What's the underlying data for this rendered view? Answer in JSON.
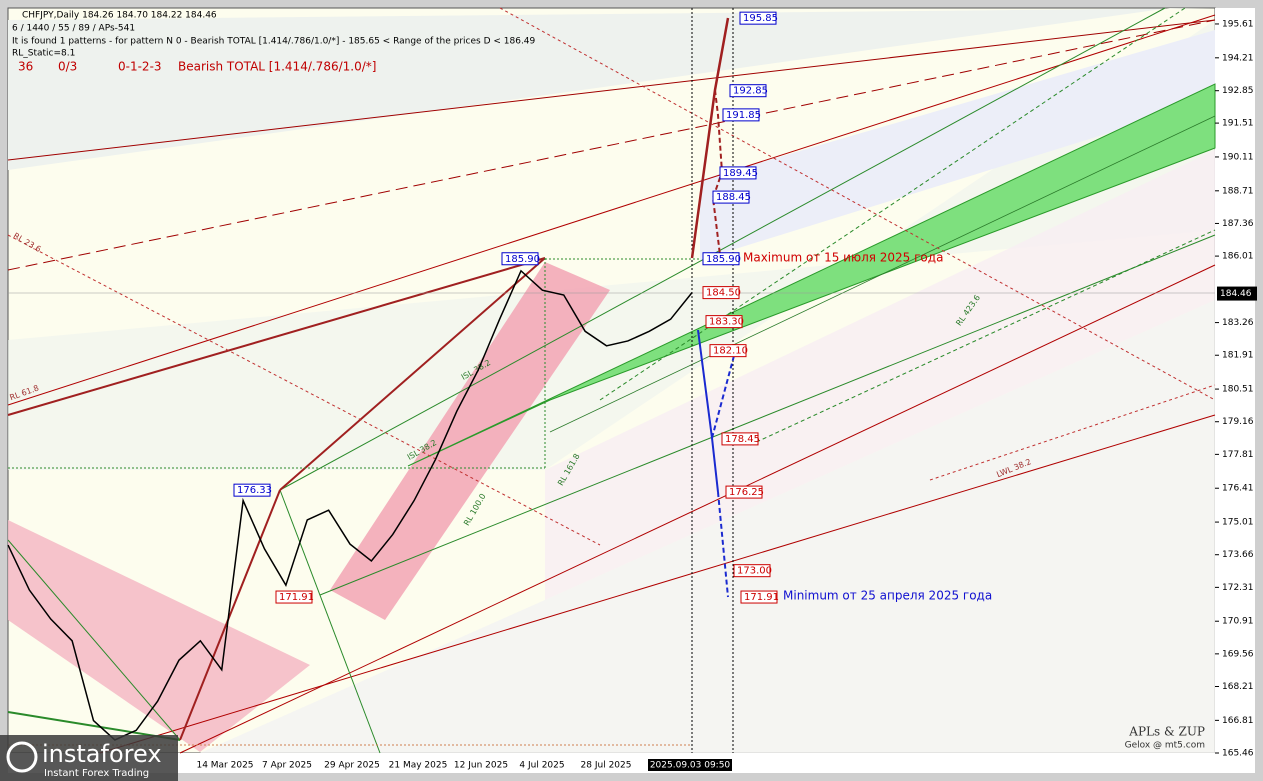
{
  "chart_data": {
    "type": "line",
    "header": [
      "CHFJPY,Daily  184.26 184.70 184.22 184.46",
      "6 / 1440 / 55 / 89 / APs-541",
      "It is found 1 patterns  -  for pattern N 0 - Bearish TOTAL [1.414/.786/1.0/*] - 185.65 < Range of the prices D < 186.49",
      "RL_Static=8.1"
    ],
    "pattern_row": [
      "36",
      "0/3",
      "0-1-2-3",
      "Bearish TOTAL [1.414/.786/1.0/*]"
    ],
    "values": [
      174.06,
      172.2,
      171.0,
      170.1,
      166.8,
      166.0,
      166.4,
      167.6,
      169.3,
      170.1,
      168.9,
      175.9,
      173.9,
      172.4,
      175.1,
      175.5,
      174.1,
      173.4,
      174.5,
      175.9,
      177.6,
      179.6,
      181.3,
      183.4,
      185.4,
      184.6,
      184.4,
      182.9,
      182.3,
      182.5,
      182.9,
      183.4,
      184.5
    ],
    "color": "#000000",
    "ylim": [
      165.46,
      196.27
    ],
    "yticks": [
      195.61,
      194.21,
      192.85,
      191.51,
      190.11,
      188.71,
      187.36,
      186.01,
      183.26,
      181.91,
      180.51,
      179.16,
      177.81,
      176.41,
      175.01,
      173.66,
      172.31,
      170.91,
      169.56,
      168.21,
      166.81,
      165.46
    ],
    "current_price": 184.46,
    "x_labels": [
      "14 Mar 2025",
      "7 Apr 2025",
      "29 Apr 2025",
      "21 May 2025",
      "12 Jun 2025",
      "4 Jul 2025",
      "28 Jul 2025",
      "2025.09.03 09:50"
    ],
    "levels": [
      {
        "value": 195.85,
        "label": "195.85",
        "color": "#0000cc"
      },
      {
        "value": 192.85,
        "label": "192.85",
        "color": "#0000cc"
      },
      {
        "value": 191.85,
        "label": "191.85",
        "color": "#0000cc"
      },
      {
        "value": 189.45,
        "label": "189.45",
        "color": "#0000cc"
      },
      {
        "value": 188.45,
        "label": "188.45",
        "color": "#0000cc"
      },
      {
        "value": 185.9,
        "label": "185.90",
        "color": "#0000cc"
      },
      {
        "value": 185.9,
        "label": "185.90",
        "color": "#0000cc"
      },
      {
        "value": 184.5,
        "label": "184.50",
        "color": "#cc0000"
      },
      {
        "value": 183.3,
        "label": "183.30",
        "color": "#cc0000"
      },
      {
        "value": 182.1,
        "label": "182.10",
        "color": "#cc0000"
      },
      {
        "value": 178.45,
        "label": "178.45",
        "color": "#cc0000"
      },
      {
        "value": 176.25,
        "label": "176.25",
        "color": "#cc0000"
      },
      {
        "value": 176.33,
        "label": "176.33",
        "color": "#0000cc"
      },
      {
        "value": 173.0,
        "label": "173.00",
        "color": "#cc0000"
      },
      {
        "value": 171.91,
        "label": "171.91",
        "color": "#cc0000"
      },
      {
        "value": 171.91,
        "label": "171.91",
        "color": "#cc0000"
      }
    ],
    "annotations": [
      "Maximum от 15 июля 2025 года",
      "Minimum от 25 апреля 2025 года"
    ],
    "line_labels": [
      "RL 23.6",
      "RL 61.8",
      "RL 423.6",
      "LWL 38.2",
      "RL 100.0",
      "RL 161.8",
      "ISL 38.2",
      "ISL 38.2"
    ],
    "credits": [
      "APLs & ZUP",
      "Gelox @ mt5.com"
    ],
    "logo": [
      "instaforex",
      "Instant Forex Trading"
    ]
  }
}
